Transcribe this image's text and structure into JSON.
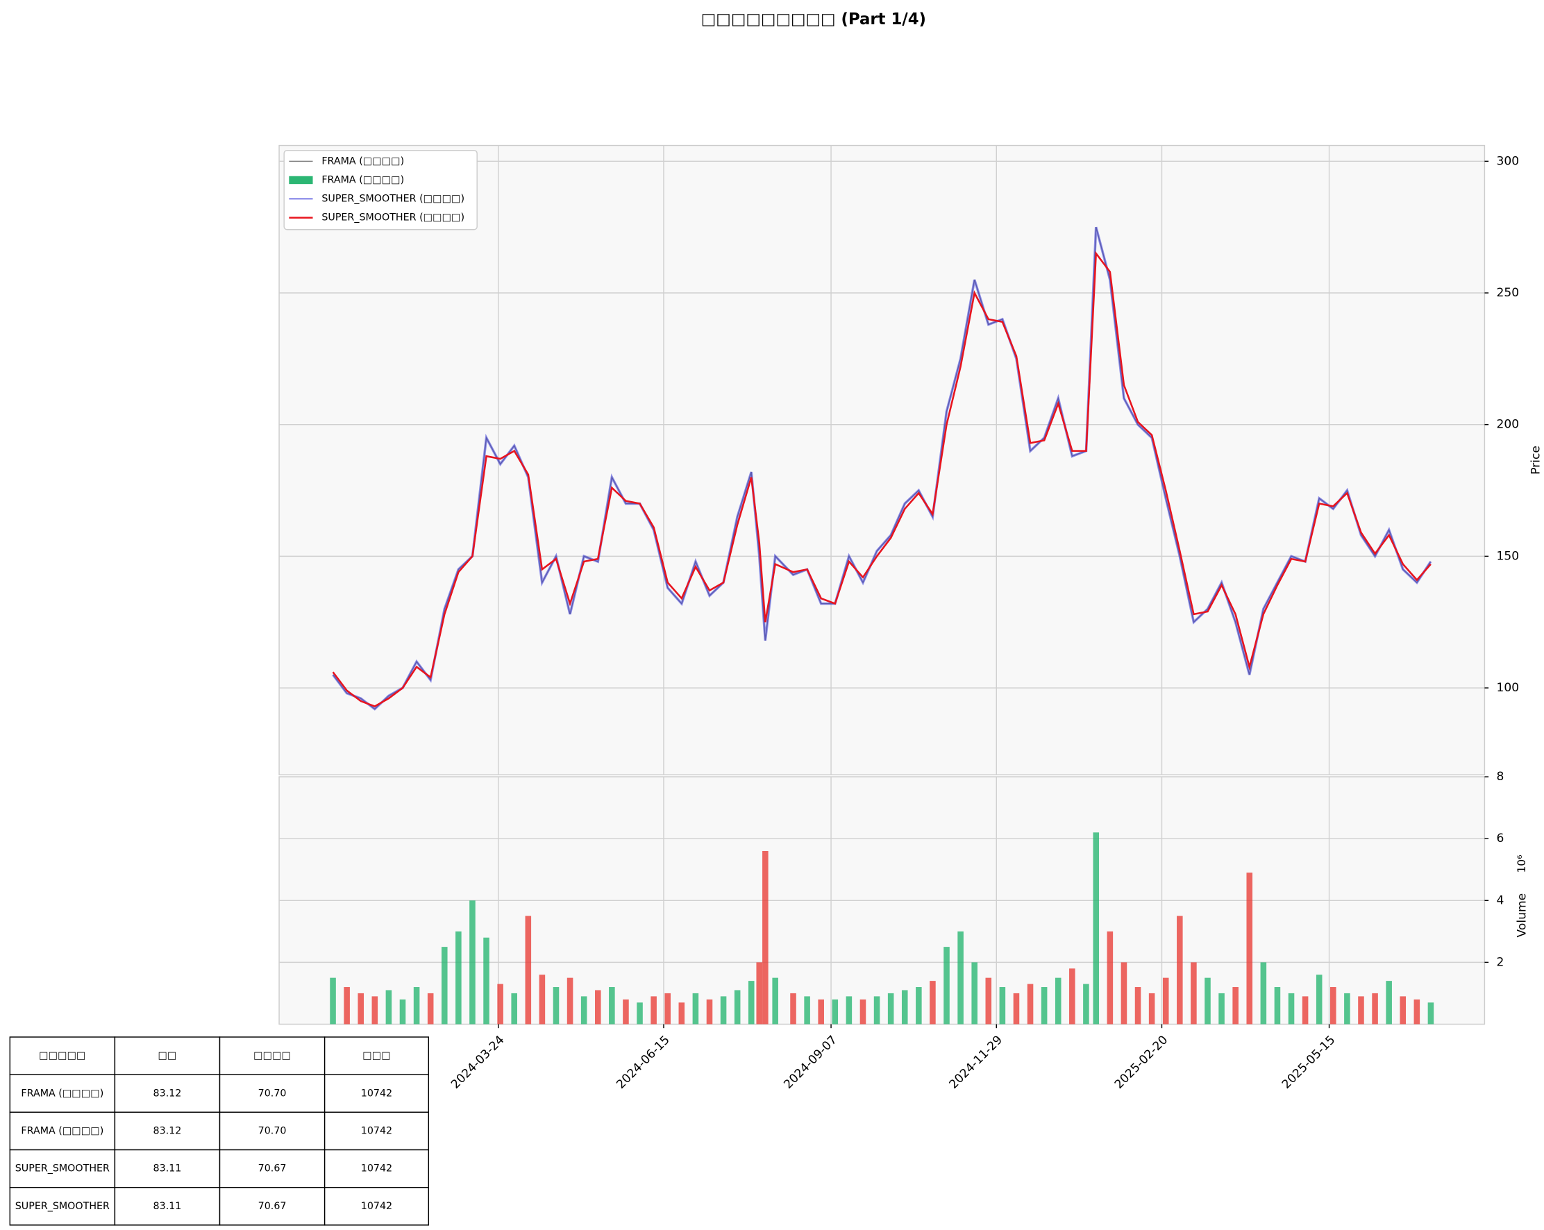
{
  "chart_data": {
    "type": "line",
    "title": "□□□□□□□□□ (Part 1/4)",
    "ylabel": "Price",
    "y2label": "Volume",
    "y2offset": "10⁶",
    "x": [
      "2024-01-01",
      "2024-01-08",
      "2024-01-15",
      "2024-01-22",
      "2024-01-29",
      "2024-02-05",
      "2024-02-12",
      "2024-02-19",
      "2024-02-26",
      "2024-03-04",
      "2024-03-11",
      "2024-03-18",
      "2024-03-25",
      "2024-04-01",
      "2024-04-08",
      "2024-04-15",
      "2024-04-22",
      "2024-04-29",
      "2024-05-06",
      "2024-05-13",
      "2024-05-20",
      "2024-05-27",
      "2024-06-03",
      "2024-06-10",
      "2024-06-17",
      "2024-06-24",
      "2024-07-01",
      "2024-07-08",
      "2024-07-15",
      "2024-07-22",
      "2024-07-29",
      "2024-08-02",
      "2024-08-05",
      "2024-08-10",
      "2024-08-19",
      "2024-08-26",
      "2024-09-02",
      "2024-09-09",
      "2024-09-16",
      "2024-09-23",
      "2024-09-30",
      "2024-10-07",
      "2024-10-14",
      "2024-10-21",
      "2024-10-28",
      "2024-11-04",
      "2024-11-11",
      "2024-11-18",
      "2024-11-25",
      "2024-12-02",
      "2024-12-09",
      "2024-12-16",
      "2024-12-23",
      "2024-12-30",
      "2025-01-06",
      "2025-01-13",
      "2025-01-18",
      "2025-01-25",
      "2025-02-01",
      "2025-02-08",
      "2025-02-15",
      "2025-02-22",
      "2025-03-01",
      "2025-03-08",
      "2025-03-15",
      "2025-03-22",
      "2025-03-29",
      "2025-04-05",
      "2025-04-12",
      "2025-04-19",
      "2025-04-26",
      "2025-05-03",
      "2025-05-10",
      "2025-05-17",
      "2025-05-24",
      "2025-05-31",
      "2025-06-07",
      "2025-06-14",
      "2025-06-21",
      "2025-06-28",
      "2025-07-05"
    ],
    "series": [
      {
        "name": "FRAMA (□□□□)",
        "color": "#808080",
        "values": [
          105,
          98,
          96,
          92,
          97,
          100,
          110,
          103,
          130,
          145,
          150,
          195,
          185,
          192,
          180,
          140,
          150,
          128,
          150,
          148,
          180,
          170,
          170,
          160,
          138,
          132,
          148,
          135,
          140,
          165,
          182,
          150,
          118,
          150,
          143,
          145,
          132,
          132,
          150,
          140,
          152,
          158,
          170,
          175,
          165,
          205,
          225,
          255,
          238,
          240,
          225,
          190,
          195,
          210,
          188,
          190,
          275,
          255,
          210,
          200,
          195,
          172,
          150,
          125,
          130,
          140,
          125,
          105,
          130,
          140,
          150,
          148,
          172,
          168,
          175,
          158,
          150,
          160,
          145,
          140,
          148
        ]
      },
      {
        "name": "FRAMA (□□□□)",
        "color": "#2bb673",
        "down_color": "#e8403a",
        "type": "bar",
        "axis": "y2",
        "values": [
          1.5,
          1.2,
          1.0,
          0.9,
          1.1,
          0.8,
          1.2,
          1.0,
          2.5,
          3.0,
          4.0,
          2.8,
          1.3,
          1.0,
          3.5,
          1.6,
          1.2,
          1.5,
          0.9,
          1.1,
          1.2,
          0.8,
          0.7,
          0.9,
          1.0,
          0.7,
          1.0,
          0.8,
          0.9,
          1.1,
          1.4,
          2.0,
          5.6,
          1.5,
          1.0,
          0.9,
          0.8,
          0.8,
          0.9,
          0.8,
          0.9,
          1.0,
          1.1,
          1.2,
          1.4,
          2.5,
          3.0,
          2.0,
          1.5,
          1.2,
          1.0,
          1.3,
          1.2,
          1.5,
          1.8,
          1.3,
          6.2,
          3.0,
          2.0,
          1.2,
          1.0,
          1.5,
          3.5,
          2.0,
          1.5,
          1.0,
          1.2,
          4.9,
          2.0,
          1.2,
          1.0,
          0.9,
          1.6,
          1.2,
          1.0,
          0.9,
          1.0,
          1.4,
          0.9,
          0.8,
          0.7
        ]
      },
      {
        "name": "SUPER_SMOOTHER (□□□□)",
        "color": "#3b3bd9",
        "values": [
          105,
          98,
          96,
          92,
          97,
          100,
          110,
          103,
          130,
          145,
          150,
          195,
          185,
          192,
          180,
          140,
          150,
          128,
          150,
          148,
          180,
          170,
          170,
          160,
          138,
          132,
          148,
          135,
          140,
          165,
          182,
          150,
          118,
          150,
          143,
          145,
          132,
          132,
          150,
          140,
          152,
          158,
          170,
          175,
          165,
          205,
          225,
          255,
          238,
          240,
          225,
          190,
          195,
          210,
          188,
          190,
          275,
          255,
          210,
          200,
          195,
          172,
          150,
          125,
          130,
          140,
          125,
          105,
          130,
          140,
          150,
          148,
          172,
          168,
          175,
          158,
          150,
          160,
          145,
          140,
          148
        ]
      },
      {
        "name": "SUPER_SMOOTHER (□□□□)",
        "color": "#e8141e",
        "values": [
          106,
          99,
          95,
          93,
          96,
          100,
          108,
          104,
          128,
          144,
          150,
          188,
          187,
          190,
          181,
          145,
          149,
          132,
          148,
          149,
          176,
          171,
          170,
          161,
          140,
          134,
          146,
          137,
          140,
          162,
          180,
          155,
          125,
          147,
          144,
          145,
          134,
          132,
          148,
          142,
          150,
          157,
          168,
          174,
          166,
          200,
          222,
          250,
          240,
          239,
          226,
          193,
          194,
          208,
          190,
          190,
          265,
          258,
          215,
          201,
          196,
          175,
          152,
          128,
          129,
          139,
          128,
          108,
          128,
          139,
          149,
          148,
          170,
          169,
          174,
          159,
          151,
          158,
          147,
          141,
          147
        ]
      }
    ],
    "xlim": [
      "2023-12-05",
      "2025-08-01"
    ],
    "xticks": [
      "2024-03-24",
      "2024-06-15",
      "2024-09-07",
      "2024-11-29",
      "2025-02-20",
      "2025-05-15"
    ],
    "ylim": [
      67,
      306
    ],
    "yticks": [
      100,
      150,
      200,
      250,
      300
    ],
    "y2lim": [
      0,
      8
    ],
    "y2ticks": [
      2,
      4,
      6,
      8
    ],
    "grid": true,
    "legend": "upper left"
  },
  "table": {
    "header": [
      "□□□□□",
      "□□",
      "□□□□",
      "□□□"
    ],
    "rows": [
      [
        "FRAMA (□□□□)",
        "83.12",
        "70.70",
        "10742"
      ],
      [
        "FRAMA (□□□□)",
        "83.12",
        "70.70",
        "10742"
      ],
      [
        "SUPER_SMOOTHER",
        "83.11",
        "70.67",
        "10742"
      ],
      [
        "SUPER_SMOOTHER",
        "83.11",
        "70.67",
        "10742"
      ]
    ]
  }
}
